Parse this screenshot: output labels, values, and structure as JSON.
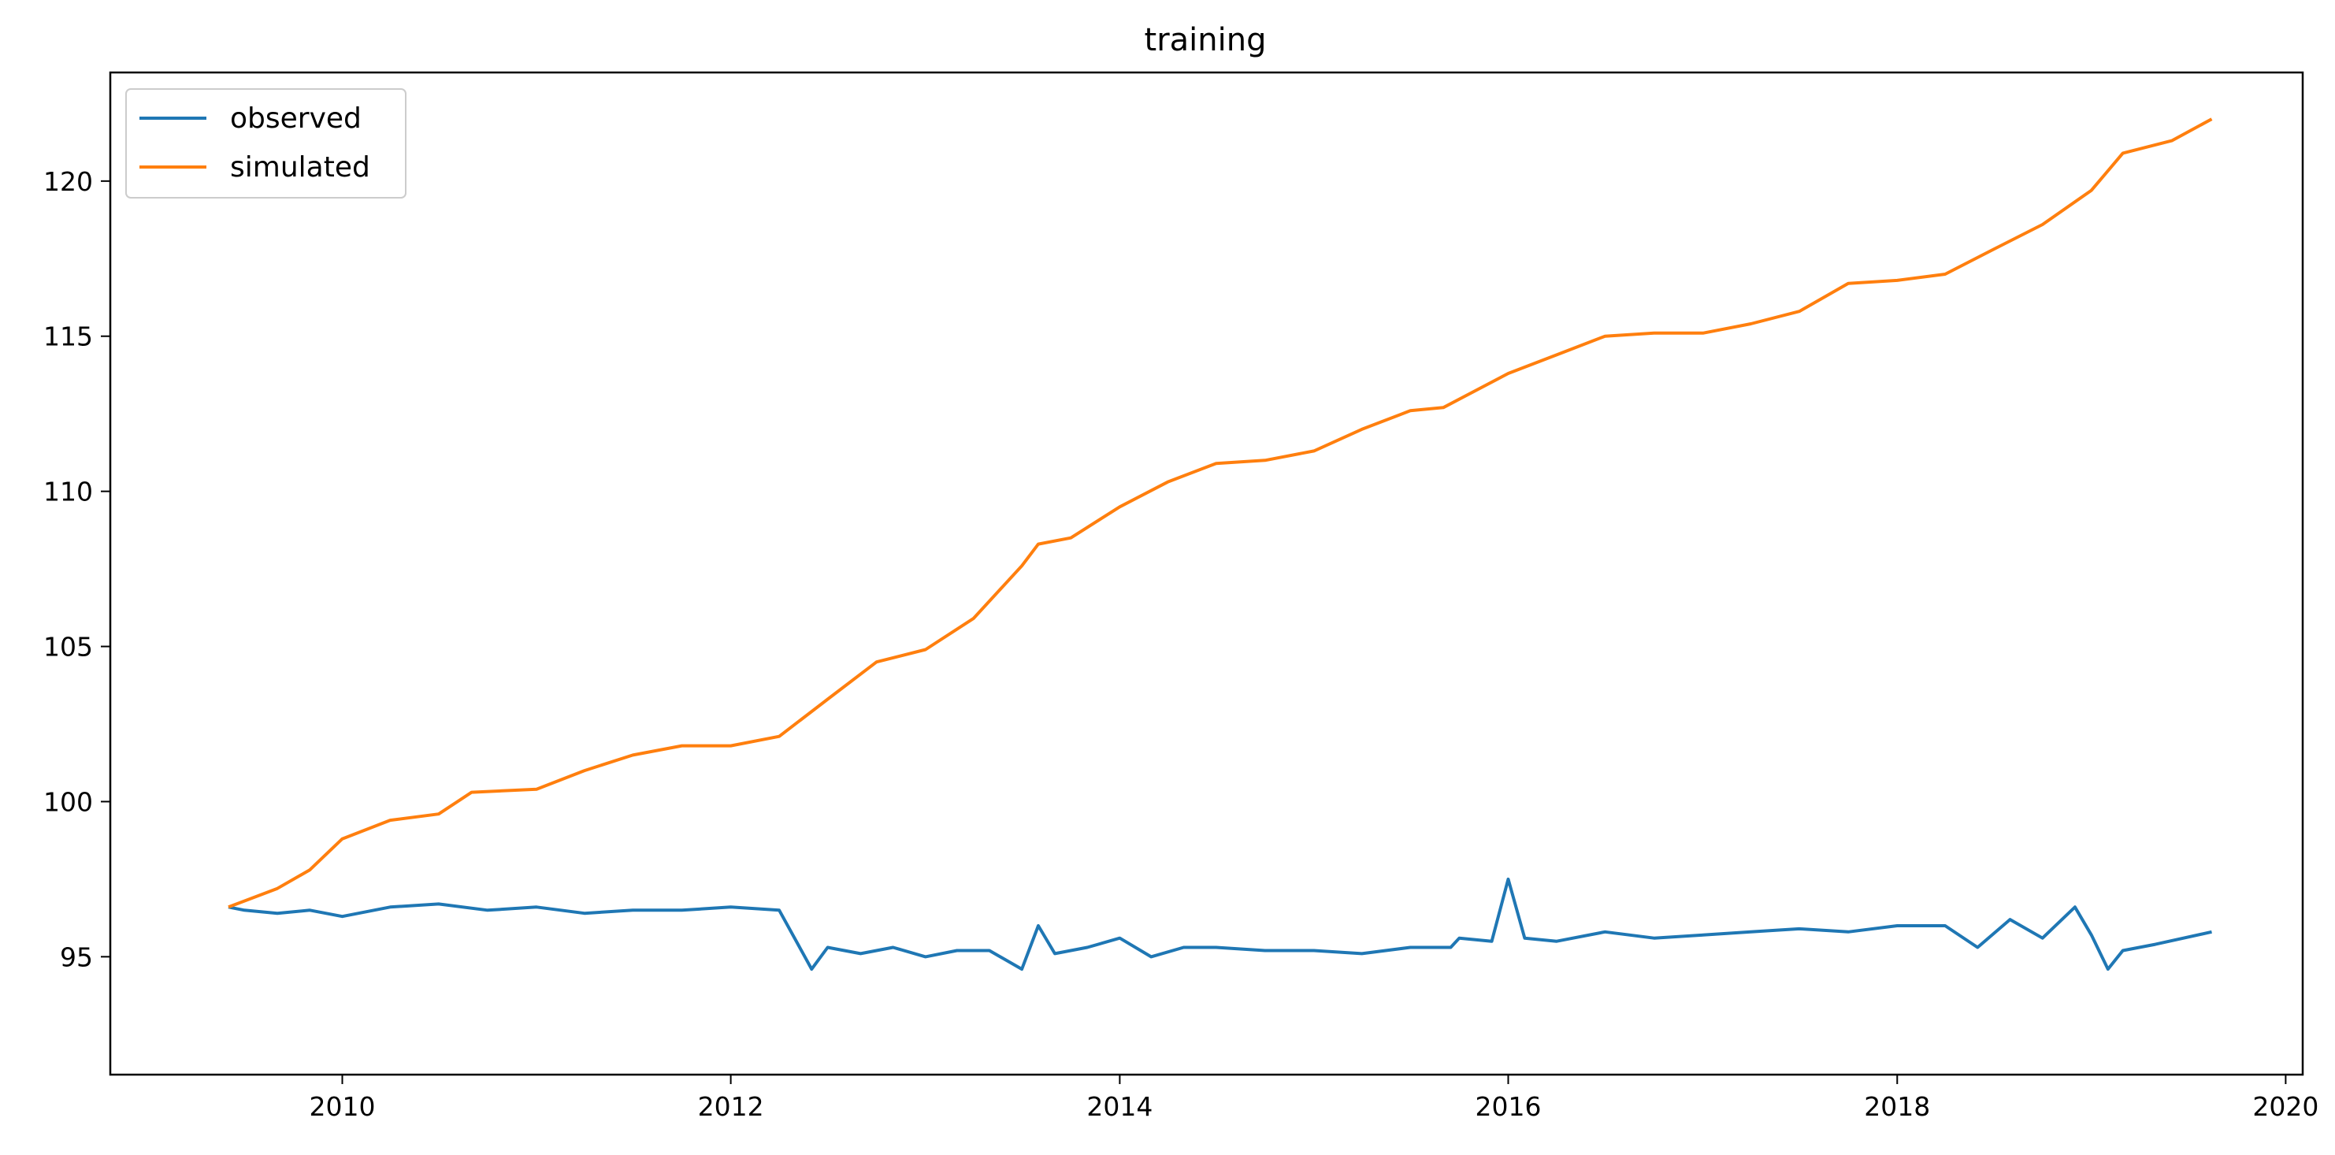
{
  "chart_data": {
    "type": "line",
    "title": "training",
    "xlabel": "",
    "ylabel": "",
    "xlim": [
      "2008-10-22",
      "2020-02-02"
    ],
    "ylim": [
      91.2,
      123.5
    ],
    "x_ticks": [
      "2010",
      "2012",
      "2014",
      "2016",
      "2018",
      "2020"
    ],
    "y_ticks": [
      "95",
      "100",
      "105",
      "110",
      "115",
      "120"
    ],
    "grid": false,
    "legend_position": "upper left",
    "series": [
      {
        "name": "observed",
        "color": "#1f77b4",
        "x": [
          "2009-06-01",
          "2009-07-01",
          "2009-09-01",
          "2009-11-01",
          "2010-01-01",
          "2010-04-01",
          "2010-07-01",
          "2010-10-01",
          "2011-01-01",
          "2011-04-01",
          "2011-07-01",
          "2011-10-01",
          "2012-01-01",
          "2012-04-01",
          "2012-06-01",
          "2012-07-01",
          "2012-09-01",
          "2012-11-01",
          "2013-01-01",
          "2013-03-01",
          "2013-05-01",
          "2013-07-01",
          "2013-08-01",
          "2013-09-01",
          "2013-11-01",
          "2014-01-01",
          "2014-03-01",
          "2014-05-01",
          "2014-07-01",
          "2014-10-01",
          "2015-01-01",
          "2015-04-01",
          "2015-07-01",
          "2015-09-15",
          "2015-10-01",
          "2015-12-01",
          "2016-01-01",
          "2016-02-01",
          "2016-04-01",
          "2016-07-01",
          "2016-10-01",
          "2017-01-01",
          "2017-04-01",
          "2017-07-01",
          "2017-10-01",
          "2018-01-01",
          "2018-04-01",
          "2018-06-01",
          "2018-08-01",
          "2018-10-01",
          "2018-12-01",
          "2019-01-01",
          "2019-02-01",
          "2019-03-01",
          "2019-05-01",
          "2019-08-15"
        ],
        "y": [
          96.6,
          96.5,
          96.4,
          96.5,
          96.3,
          96.6,
          96.7,
          96.5,
          96.6,
          96.4,
          96.5,
          96.5,
          96.6,
          96.5,
          94.6,
          95.3,
          95.1,
          95.3,
          95.0,
          95.2,
          95.2,
          94.6,
          96.0,
          95.1,
          95.3,
          95.6,
          95.0,
          95.3,
          95.3,
          95.2,
          95.2,
          95.1,
          95.3,
          95.3,
          95.6,
          95.5,
          97.5,
          95.6,
          95.5,
          95.8,
          95.6,
          95.7,
          95.8,
          95.9,
          95.8,
          96.0,
          96.0,
          95.3,
          96.2,
          95.6,
          96.6,
          95.7,
          94.6,
          95.2,
          95.4,
          95.8
        ]
      },
      {
        "name": "simulated",
        "color": "#ff7f0e",
        "x": [
          "2009-06-01",
          "2009-09-01",
          "2009-11-01",
          "2010-01-01",
          "2010-04-01",
          "2010-07-01",
          "2010-09-01",
          "2011-01-01",
          "2011-04-01",
          "2011-07-01",
          "2011-10-01",
          "2012-01-01",
          "2012-04-01",
          "2012-07-01",
          "2012-10-01",
          "2013-01-01",
          "2013-04-01",
          "2013-07-01",
          "2013-08-01",
          "2013-10-01",
          "2014-01-01",
          "2014-04-01",
          "2014-07-01",
          "2014-10-01",
          "2015-01-01",
          "2015-04-01",
          "2015-07-01",
          "2015-09-01",
          "2016-01-01",
          "2016-04-01",
          "2016-07-01",
          "2016-10-01",
          "2017-01-01",
          "2017-04-01",
          "2017-07-01",
          "2017-10-01",
          "2018-01-01",
          "2018-04-01",
          "2018-07-01",
          "2018-10-01",
          "2019-01-01",
          "2019-03-01",
          "2019-06-01",
          "2019-08-15"
        ],
        "y": [
          96.6,
          97.2,
          97.8,
          98.8,
          99.4,
          99.6,
          100.3,
          100.4,
          101.0,
          101.5,
          101.8,
          101.8,
          102.1,
          103.3,
          104.5,
          104.9,
          105.9,
          107.6,
          108.3,
          108.5,
          109.5,
          110.3,
          110.9,
          111.0,
          111.3,
          112.0,
          112.6,
          112.7,
          113.8,
          114.4,
          115.0,
          115.1,
          115.1,
          115.4,
          115.8,
          116.7,
          116.8,
          117.0,
          117.8,
          118.6,
          119.7,
          120.9,
          121.3,
          122.0
        ]
      }
    ]
  }
}
